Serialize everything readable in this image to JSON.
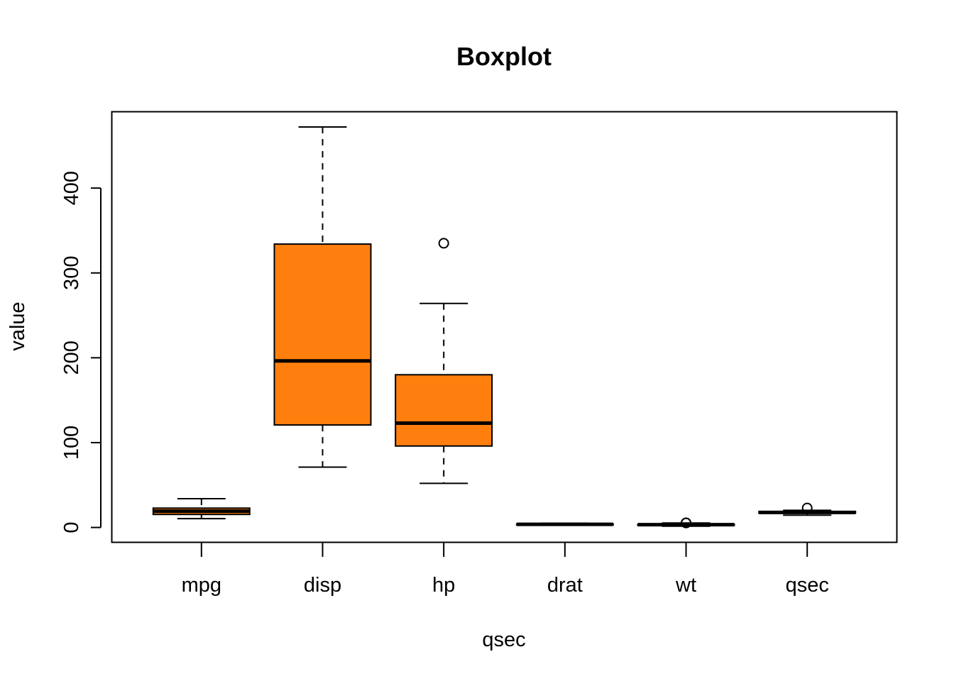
{
  "chart_data": {
    "type": "boxplot",
    "title": "Boxplot",
    "xlabel": "qsec",
    "ylabel": "value",
    "ylim": [
      -17.5,
      490
    ],
    "yticks": [
      0,
      100,
      200,
      300,
      400
    ],
    "colors": {
      "box_fill": "#FF7F0E",
      "stroke": "#000000",
      "background": "#FFFFFF"
    },
    "categories": [
      "mpg",
      "disp",
      "hp",
      "drat",
      "wt",
      "qsec"
    ],
    "boxes": [
      {
        "name": "mpg",
        "min": 10.4,
        "q1": 15.35,
        "median": 19.2,
        "q3": 22.8,
        "max": 33.9,
        "outliers": []
      },
      {
        "name": "disp",
        "min": 71.1,
        "q1": 120.8,
        "median": 196.3,
        "q3": 334,
        "max": 472,
        "outliers": []
      },
      {
        "name": "hp",
        "min": 52,
        "q1": 96,
        "median": 123,
        "q3": 180,
        "max": 264,
        "outliers": [
          335
        ]
      },
      {
        "name": "drat",
        "min": 2.76,
        "q1": 3.08,
        "median": 3.695,
        "q3": 3.92,
        "max": 4.93,
        "outliers": []
      },
      {
        "name": "wt",
        "min": 1.513,
        "q1": 2.58,
        "median": 3.325,
        "q3": 3.61,
        "max": 5.25,
        "outliers": [
          5.345,
          5.424
        ]
      },
      {
        "name": "qsec",
        "min": 14.5,
        "q1": 16.89,
        "median": 17.71,
        "q3": 18.9,
        "max": 20.22,
        "outliers": [
          22.9
        ]
      }
    ]
  }
}
